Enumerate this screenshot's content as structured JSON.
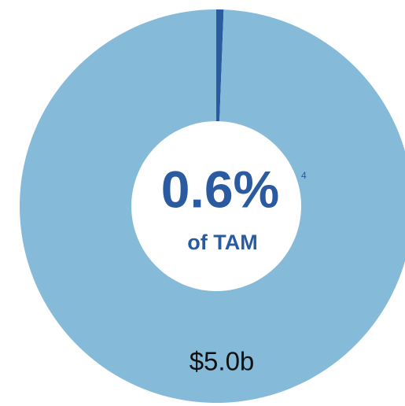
{
  "chart_data": {
    "type": "donut",
    "values": [
      0.6,
      99.4
    ],
    "value_labels": [
      "0.6%",
      null
    ],
    "colors": [
      "#2a5aa0",
      "#86bad9"
    ],
    "footnote": "4",
    "center_subtitle": "of TAM",
    "annotation": "$5.0b"
  }
}
